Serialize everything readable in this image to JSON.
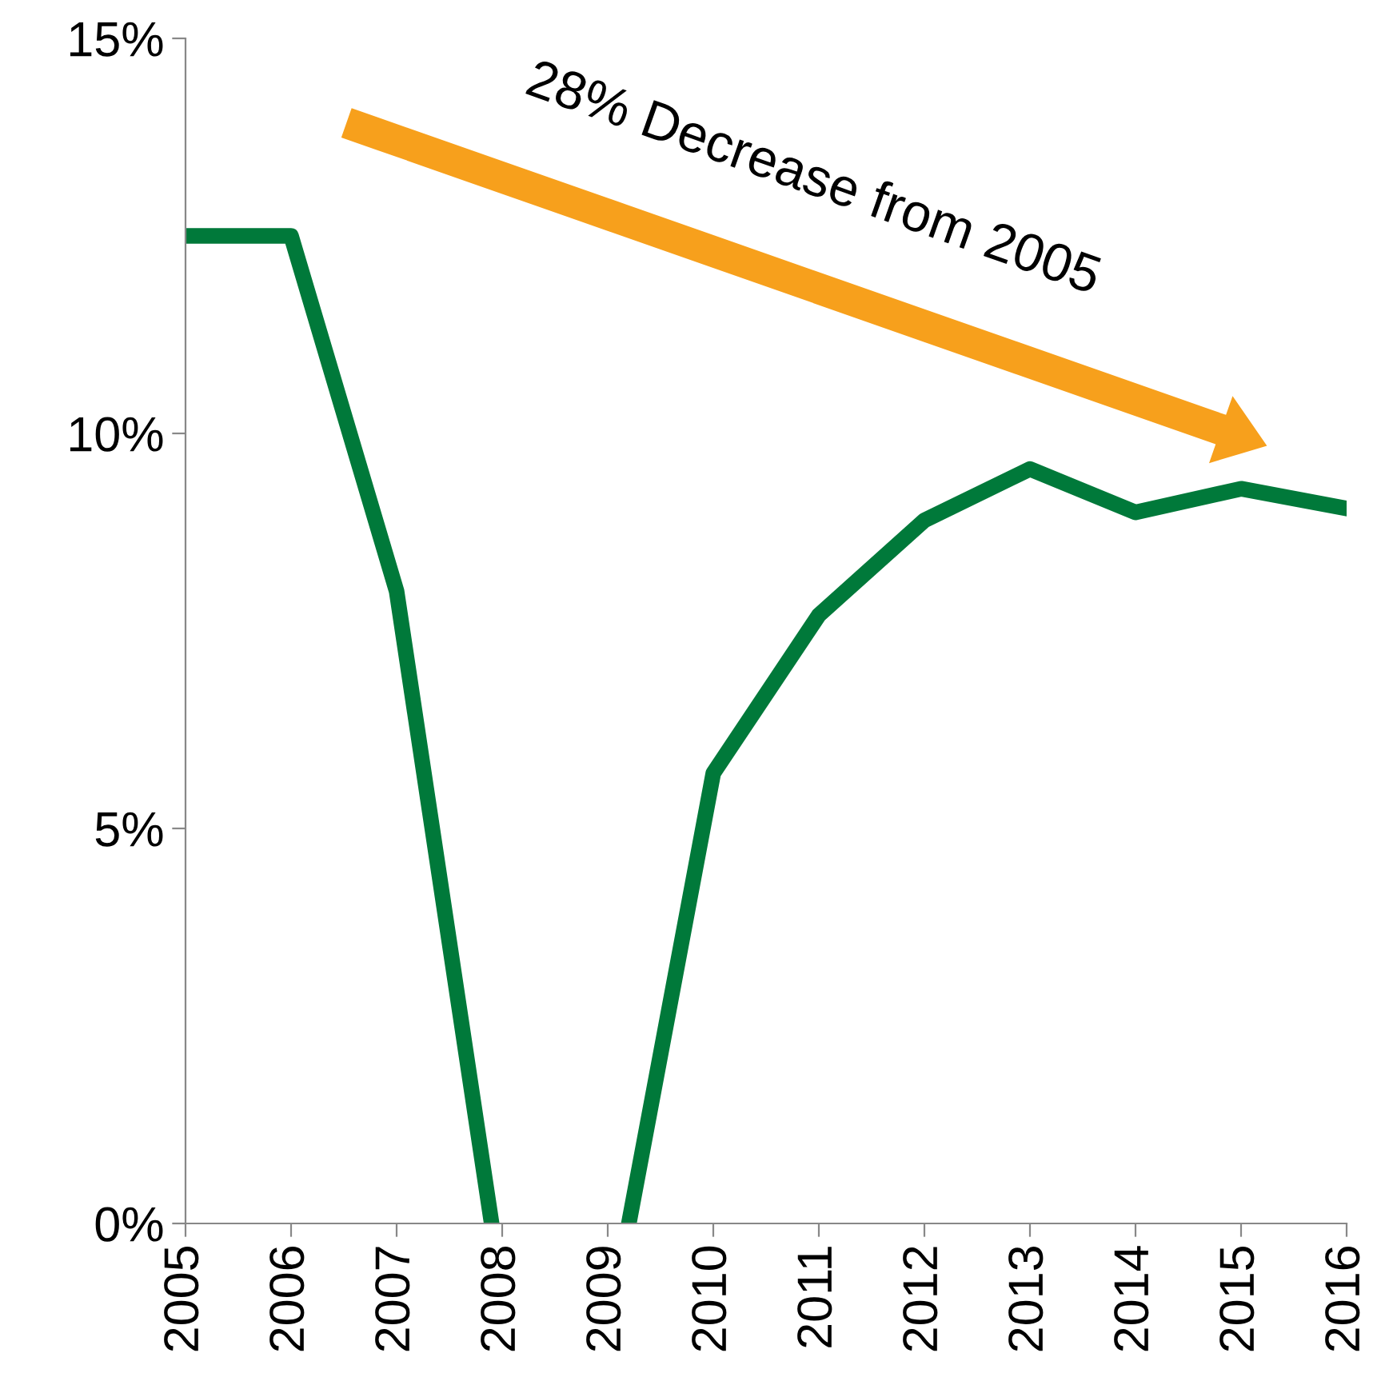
{
  "chart_data": {
    "type": "line",
    "x": [
      2005,
      2006,
      2007,
      2007.9,
      null,
      2009.2,
      2010,
      2011,
      2012,
      2013,
      2014,
      2015,
      2016
    ],
    "series": [
      {
        "color": "#00793a",
        "values": [
          12.5,
          12.5,
          8.0,
          0,
          null,
          0,
          5.7,
          7.7,
          8.9,
          9.55,
          9.0,
          9.3,
          9.05
        ]
      }
    ],
    "xlim": [
      2005,
      2016
    ],
    "xticks": [
      2005,
      2006,
      2007,
      2008,
      2009,
      2010,
      2011,
      2012,
      2013,
      2014,
      2015,
      2016
    ],
    "ylim": [
      0,
      15
    ],
    "yticks": [
      {
        "value": 0,
        "label": "0%"
      },
      {
        "value": 5,
        "label": "5%"
      },
      {
        "value": 10,
        "label": "10%"
      },
      {
        "value": 15,
        "label": "15%"
      }
    ],
    "grid": false,
    "legend": false,
    "marker": "none",
    "line_style": "solid",
    "annotations": [
      "28% Decrease from 2005"
    ]
  }
}
